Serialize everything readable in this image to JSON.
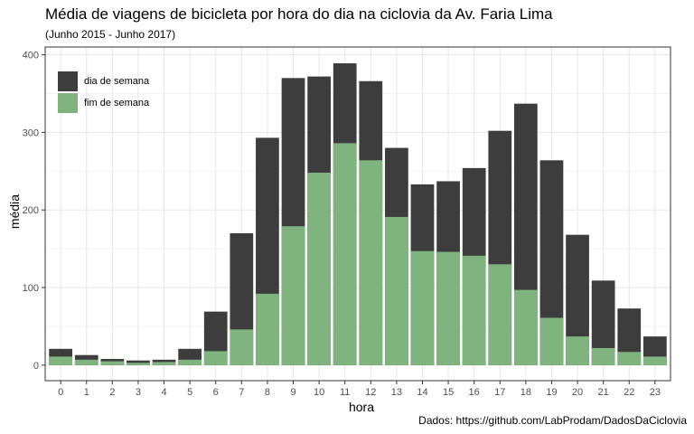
{
  "title": "Média de viagens de bicicleta por hora do dia na ciclovia da Av. Faria Lima",
  "subtitle": "(Junho 2015 - Junho 2017)",
  "caption": "Dados: https://github.com/LabProdam/DadosDaCiclovia",
  "colors": {
    "weekday": "#3d3d3d",
    "weekend": "#80b47f",
    "grid_major": "#e6e6e6",
    "grid_minor": "#f3f3f3",
    "axis_text": "#4d4d4d"
  },
  "chart_data": {
    "type": "bar",
    "stacking": "overlay",
    "xlabel": "hora",
    "ylabel": "média",
    "categories": [
      "0",
      "1",
      "2",
      "3",
      "4",
      "5",
      "6",
      "7",
      "8",
      "9",
      "10",
      "11",
      "12",
      "13",
      "14",
      "15",
      "16",
      "17",
      "18",
      "19",
      "20",
      "21",
      "22",
      "23"
    ],
    "ylim": [
      0,
      400
    ],
    "yticks": [
      0,
      100,
      200,
      300,
      400
    ],
    "grid": true,
    "legend_position": "top-left",
    "series": [
      {
        "name": "dia de semana",
        "color": "#3d3d3d",
        "values": [
          21,
          13,
          8,
          6,
          7,
          21,
          69,
          170,
          293,
          370,
          372,
          389,
          366,
          280,
          233,
          237,
          254,
          302,
          337,
          264,
          168,
          109,
          73,
          37
        ]
      },
      {
        "name": "fim de semana",
        "color": "#80b47f",
        "values": [
          11,
          7,
          5,
          3,
          4,
          7,
          18,
          46,
          92,
          179,
          248,
          286,
          264,
          191,
          147,
          146,
          141,
          130,
          97,
          61,
          37,
          22,
          17,
          11
        ]
      }
    ]
  }
}
